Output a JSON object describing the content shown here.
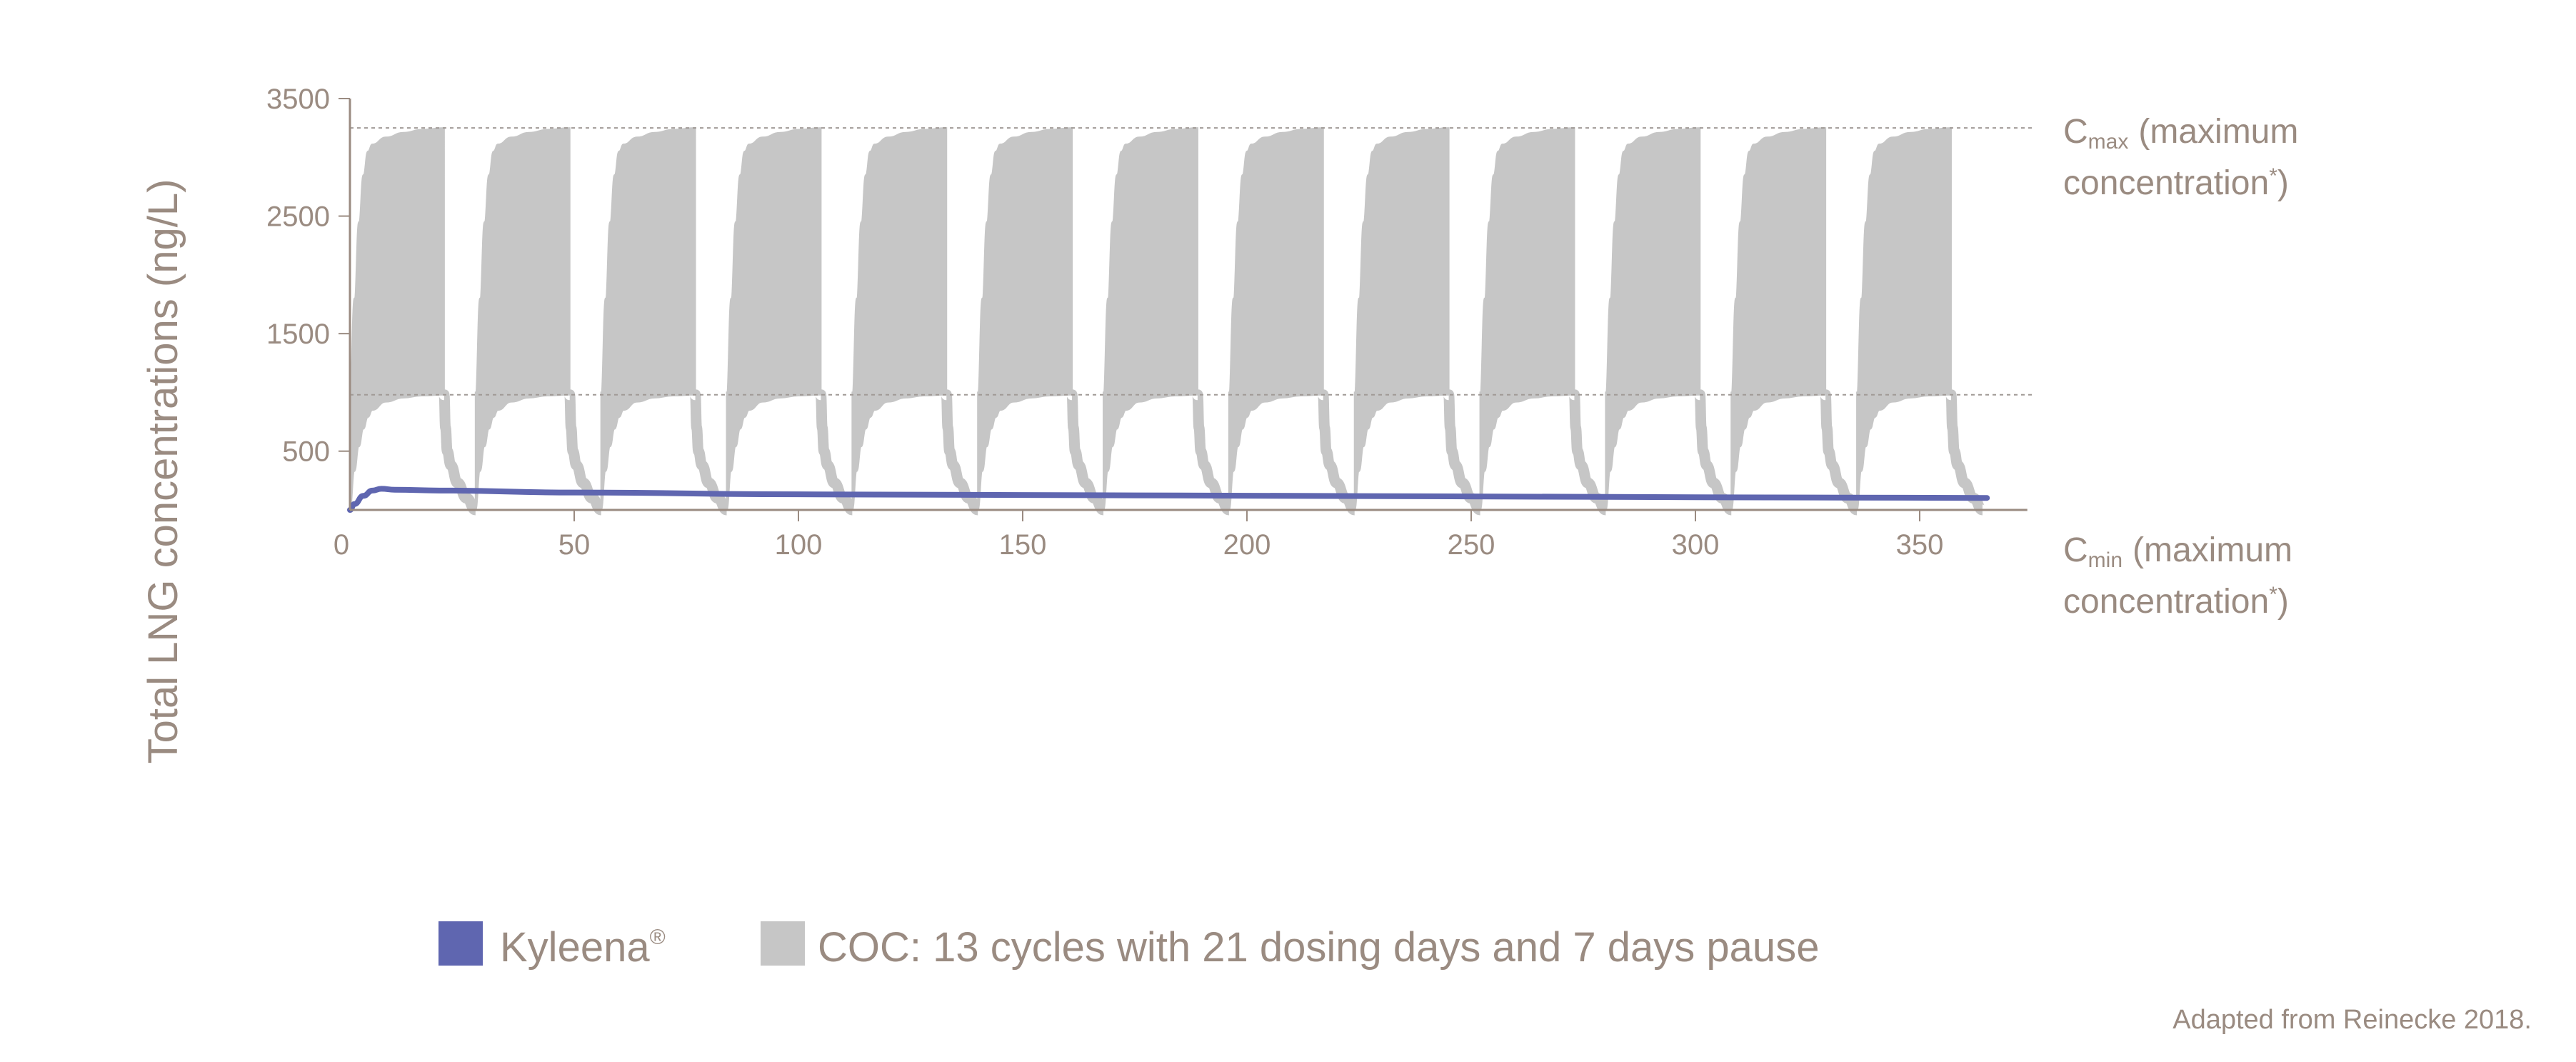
{
  "chart_data": {
    "type": "area",
    "title": "",
    "xlabel": "",
    "ylabel": "Total LNG concentrations (ng/L)",
    "xlim": [
      0,
      374
    ],
    "ylim": [
      0,
      3500
    ],
    "x_ticks": [
      "0",
      "50",
      "100",
      "150",
      "200",
      "250",
      "300",
      "350"
    ],
    "y_ticks": [
      "500",
      "1500",
      "2500",
      "3500"
    ],
    "grid": false,
    "reference_lines": [
      {
        "name": "Cmax",
        "value": 3250,
        "label_main": "C",
        "label_sub": "max",
        "label_rest": "(maximum",
        "label_line2": "concentration",
        "label_sup": "*",
        "label_close": ")"
      },
      {
        "name": "Cmin",
        "value": 980,
        "label_main": "C",
        "label_sub": "min",
        "label_rest": "(maximum",
        "label_line2": "concentration",
        "label_sup": "*",
        "label_close": ")"
      }
    ],
    "series": [
      {
        "name": "Kyleena®",
        "type": "line",
        "color": "#5f66b0",
        "points": [
          [
            0,
            0
          ],
          [
            1,
            50
          ],
          [
            3,
            120
          ],
          [
            5,
            165
          ],
          [
            7,
            180
          ],
          [
            10,
            172
          ],
          [
            20,
            165
          ],
          [
            50,
            148
          ],
          [
            100,
            133
          ],
          [
            150,
            127
          ],
          [
            200,
            121
          ],
          [
            250,
            115
          ],
          [
            300,
            108
          ],
          [
            365,
            102
          ]
        ]
      },
      {
        "name": "COC: 13 cycles with 21 dosing days and 7 days pause",
        "type": "band",
        "color": "#c6c6c6",
        "cycles": 13,
        "cycle_length_days": 28,
        "dosing_days": 21,
        "cycle_profile": {
          "upper": [
            [
              0,
              1000
            ],
            [
              1,
              1800
            ],
            [
              2,
              2450
            ],
            [
              3,
              2850
            ],
            [
              4,
              3050
            ],
            [
              5,
              3110
            ],
            [
              8,
              3170
            ],
            [
              12,
              3210
            ],
            [
              16,
              3235
            ],
            [
              21,
              3250
            ]
          ],
          "lower": [
            [
              0,
              0
            ],
            [
              1,
              330
            ],
            [
              2,
              540
            ],
            [
              3,
              690
            ],
            [
              4,
              790
            ],
            [
              5,
              850
            ],
            [
              8,
              920
            ],
            [
              12,
              955
            ],
            [
              16,
              972
            ],
            [
              21,
              980
            ]
          ],
          "washout": [
            [
              21,
              980
            ],
            [
              21.3,
              700
            ],
            [
              21.7,
              500
            ],
            [
              22.5,
              380
            ],
            [
              24,
              230
            ],
            [
              26,
              100
            ],
            [
              28,
              0
            ]
          ]
        }
      }
    ],
    "legend": {
      "placement": "bottom",
      "items": [
        {
          "label": "Kyleena",
          "sup": "®",
          "color": "#5f66b0"
        },
        {
          "label": "COC: 13 cycles with 21 dosing days and 7 days pause",
          "color": "#c6c6c6"
        }
      ]
    },
    "footnote": "Adapted from Reinecke 2018."
  }
}
